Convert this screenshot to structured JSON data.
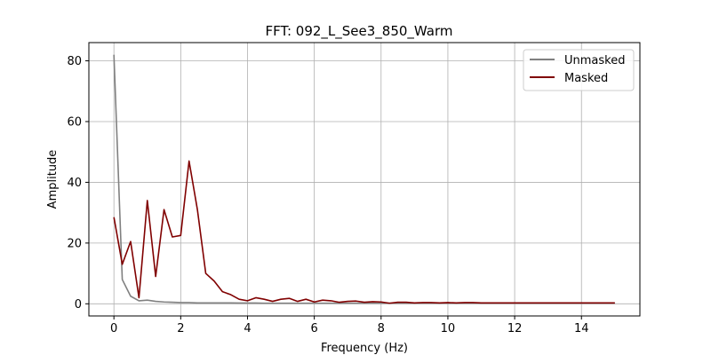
{
  "chart_data": {
    "type": "line",
    "title": "FFT: 092_L_See3_850_Warm",
    "xlabel": "Frequency (Hz)",
    "ylabel": "Amplitude",
    "xlim": [
      -0.75,
      15.75
    ],
    "ylim": [
      -4,
      86
    ],
    "xticks": [
      0,
      2,
      4,
      6,
      8,
      10,
      12,
      14
    ],
    "yticks": [
      0,
      20,
      40,
      60,
      80
    ],
    "grid": true,
    "legend_position": "top-right",
    "x": [
      0,
      0.25,
      0.5,
      0.75,
      1,
      1.25,
      1.5,
      1.75,
      2,
      2.25,
      2.5,
      2.75,
      3,
      3.25,
      3.5,
      3.75,
      4,
      4.25,
      4.5,
      4.75,
      5,
      5.25,
      5.5,
      5.75,
      6,
      6.25,
      6.5,
      6.75,
      7,
      7.25,
      7.5,
      7.75,
      8,
      8.25,
      8.5,
      8.75,
      9,
      9.25,
      9.5,
      9.75,
      10,
      10.25,
      10.5,
      10.75,
      11,
      11.25,
      11.5,
      11.75,
      12,
      12.25,
      12.5,
      12.75,
      13,
      13.25,
      13.5,
      13.75,
      14,
      14.25,
      14.5,
      14.75,
      15
    ],
    "series": [
      {
        "name": "Unmasked",
        "color": "#808080",
        "values": [
          82,
          8,
          2.5,
          1,
          1.2,
          0.8,
          0.6,
          0.5,
          0.4,
          0.4,
          0.3,
          0.3,
          0.3,
          0.3,
          0.3,
          0.25,
          0.25,
          0.25,
          0.2,
          0.2,
          0.2,
          0.2,
          0.2,
          0.2,
          0.2,
          0.2,
          0.2,
          0.2,
          0.2,
          0.2,
          0.2,
          0.2,
          0.2,
          0.2,
          0.2,
          0.2,
          0.2,
          0.2,
          0.2,
          0.2,
          0.2,
          0.2,
          0.2,
          0.2,
          0.2,
          0.2,
          0.2,
          0.2,
          0.2,
          0.2,
          0.2,
          0.2,
          0.2,
          0.2,
          0.2,
          0.2,
          0.2,
          0.2,
          0.2,
          0.2,
          0.2
        ]
      },
      {
        "name": "Masked",
        "color": "#800000",
        "values": [
          28.5,
          13,
          20.5,
          2,
          34,
          9,
          31,
          22,
          22.5,
          47,
          31,
          10,
          7.5,
          4,
          3,
          1.5,
          1,
          2,
          1.5,
          0.8,
          1.5,
          1.8,
          0.8,
          1.5,
          0.6,
          1.2,
          1,
          0.5,
          0.8,
          0.9,
          0.5,
          0.7,
          0.6,
          0.2,
          0.5,
          0.5,
          0.3,
          0.4,
          0.4,
          0.3,
          0.4,
          0.3,
          0.4,
          0.4,
          0.3,
          0.3,
          0.3,
          0.3,
          0.3,
          0.3,
          0.3,
          0.3,
          0.3,
          0.3,
          0.3,
          0.3,
          0.3,
          0.3,
          0.3,
          0.3,
          0.3
        ]
      }
    ]
  }
}
